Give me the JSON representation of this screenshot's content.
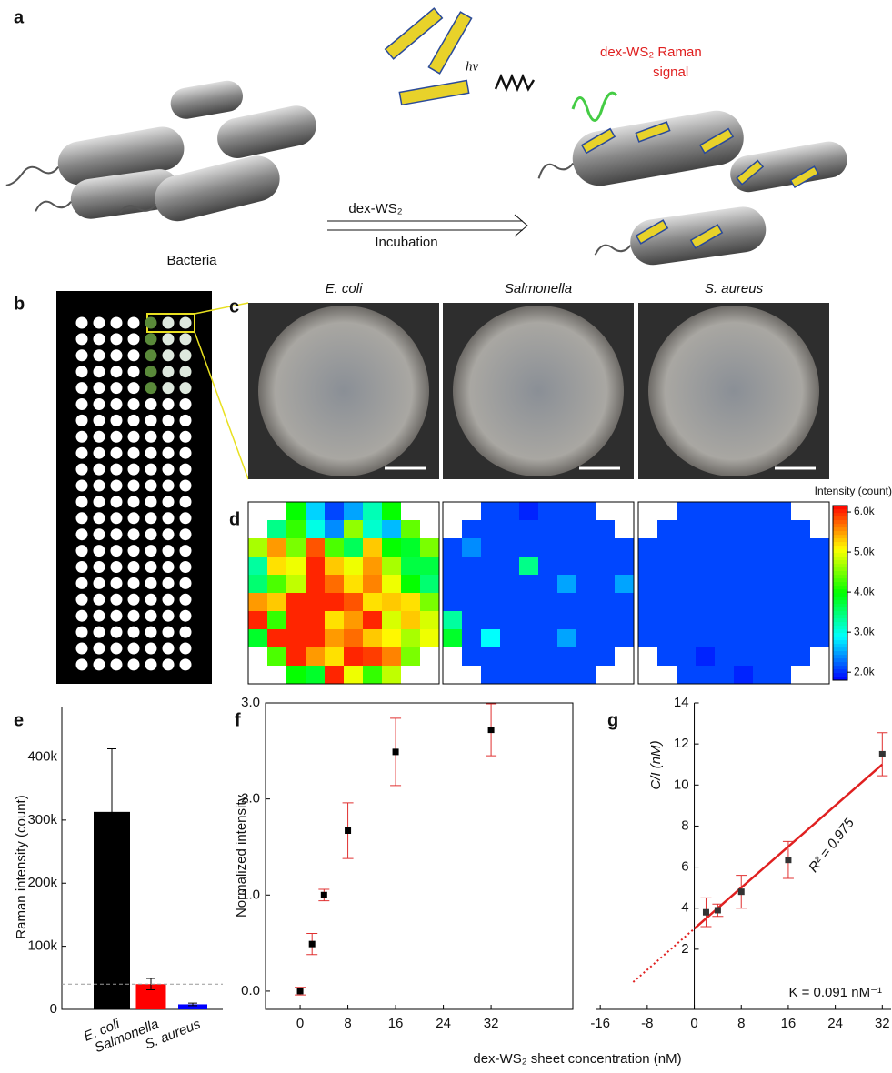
{
  "panel_labels": [
    "a",
    "b",
    "c",
    "d",
    "e",
    "f",
    "g"
  ],
  "panel_a": {
    "reagent": "dex-WS₂",
    "step": "Incubation",
    "bacteria": "Bacteria",
    "light": "hν",
    "signal": [
      "dex-WS₂ Raman",
      "signal"
    ]
  },
  "photos": {
    "titles": [
      "E. coli",
      "Salmonella",
      "S. aureus"
    ]
  },
  "shared_xlabel": "dex-WS₂ sheet concentration (nM)",
  "chart_data": [
    {
      "type": "heatmap",
      "values": [
        [
          null,
          null,
          4000,
          2700,
          2100,
          2500,
          3200,
          4000,
          null,
          null
        ],
        [
          null,
          3400,
          4200,
          3000,
          2400,
          4600,
          3100,
          2600,
          4400,
          null
        ],
        [
          4700,
          5500,
          4500,
          5800,
          4300,
          3600,
          5300,
          4000,
          3800,
          4500
        ],
        [
          3300,
          5200,
          5000,
          6000,
          5300,
          5000,
          5500,
          4700,
          3700,
          3700
        ],
        [
          3500,
          4300,
          4800,
          6000,
          5700,
          5200,
          5600,
          5000,
          4000,
          3500
        ],
        [
          5500,
          5300,
          6000,
          6000,
          6000,
          5800,
          5200,
          5300,
          5200,
          4500
        ],
        [
          6000,
          4200,
          6000,
          6000,
          5200,
          5500,
          6000,
          4900,
          5300,
          4900
        ],
        [
          3800,
          6000,
          6000,
          6000,
          5500,
          5700,
          5300,
          5100,
          4700,
          5000
        ],
        [
          null,
          4300,
          6000,
          5500,
          5200,
          6000,
          5900,
          5600,
          4500,
          null
        ],
        [
          null,
          null,
          4000,
          3800,
          6000,
          5000,
          4200,
          4800,
          null,
          null
        ]
      ]
    },
    {
      "type": "heatmap",
      "values": [
        [
          null,
          null,
          2100,
          2100,
          1950,
          2100,
          2100,
          2100,
          null,
          null
        ],
        [
          null,
          2100,
          2100,
          2100,
          2100,
          2100,
          2100,
          2100,
          2100,
          null
        ],
        [
          2100,
          2400,
          2100,
          2100,
          2100,
          2100,
          2100,
          2100,
          2100,
          2100
        ],
        [
          2100,
          2100,
          2100,
          2100,
          3400,
          2100,
          2100,
          2100,
          2100,
          2100
        ],
        [
          2100,
          2100,
          2100,
          2100,
          2100,
          2100,
          2500,
          2100,
          2100,
          2500
        ],
        [
          2100,
          2100,
          2100,
          2100,
          2100,
          2100,
          2100,
          2100,
          2100,
          2100
        ],
        [
          3300,
          2100,
          2100,
          2100,
          2100,
          2100,
          2100,
          2100,
          2100,
          2100
        ],
        [
          3800,
          2100,
          2900,
          2100,
          2100,
          2100,
          2500,
          2100,
          2100,
          2100
        ],
        [
          null,
          2100,
          2100,
          2100,
          2100,
          2100,
          2100,
          2100,
          2100,
          null
        ],
        [
          null,
          null,
          2100,
          2100,
          2100,
          2100,
          2100,
          2100,
          null,
          null
        ]
      ]
    },
    {
      "type": "heatmap",
      "values": [
        [
          null,
          null,
          2100,
          2100,
          2100,
          2100,
          2100,
          2100,
          null,
          null
        ],
        [
          null,
          2100,
          2100,
          2100,
          2100,
          2100,
          2100,
          2100,
          2100,
          null
        ],
        [
          2100,
          2100,
          2100,
          2100,
          2100,
          2100,
          2100,
          2100,
          2100,
          2100
        ],
        [
          2100,
          2100,
          2100,
          2100,
          2100,
          2100,
          2100,
          2100,
          2100,
          2100
        ],
        [
          2100,
          2100,
          2100,
          2100,
          2100,
          2100,
          2100,
          2100,
          2100,
          2100
        ],
        [
          2100,
          2100,
          2100,
          2100,
          2100,
          2100,
          2100,
          2100,
          2100,
          2100
        ],
        [
          2100,
          2100,
          2100,
          2100,
          2100,
          2100,
          2100,
          2100,
          2100,
          2100
        ],
        [
          2100,
          2100,
          2100,
          2100,
          2100,
          2100,
          2100,
          2100,
          2100,
          2100
        ],
        [
          null,
          2100,
          2100,
          1950,
          2100,
          2100,
          2100,
          2100,
          2100,
          null
        ],
        [
          null,
          null,
          2100,
          2100,
          2100,
          1950,
          2100,
          2100,
          null,
          null
        ]
      ],
      "colorbar": {
        "label": "Intensity (count)",
        "clim": [
          1800,
          6160
        ],
        "ticks": [
          {
            "value": 2000,
            "label": "2.0k"
          },
          {
            "value": 3000,
            "label": "3.0k"
          },
          {
            "value": 4000,
            "label": "4.0k"
          },
          {
            "value": 5000,
            "label": "5.0k"
          },
          {
            "value": 6000,
            "label": "6.0k"
          }
        ]
      }
    },
    {
      "type": "bar",
      "ylabel": "Raman intensity (count)",
      "categories": [
        "E. coli",
        "Salmonella",
        "S. aureus"
      ],
      "values": [
        313000,
        40000,
        8000
      ],
      "errors": [
        100000,
        9000,
        2000
      ],
      "colors": [
        "#000000",
        "#ff0000",
        "#0000ff"
      ],
      "reference_line": 40000,
      "ylim": [
        0,
        480000
      ],
      "yticks": [
        0,
        {
          "value": 100000,
          "label": "100k"
        },
        {
          "value": 200000,
          "label": "200k"
        },
        {
          "value": 300000,
          "label": "300k"
        },
        {
          "value": 400000,
          "label": "400k"
        }
      ]
    },
    {
      "type": "scatter",
      "ylabel": "Normalized intensity",
      "x": [
        0,
        2,
        4,
        8,
        16,
        32
      ],
      "values": [
        0.0,
        0.49,
        1.0,
        1.67,
        2.49,
        2.72
      ],
      "errors": [
        0.04,
        0.11,
        0.06,
        0.29,
        0.35,
        0.27
      ],
      "xlim": [
        -5.8,
        45.7
      ],
      "ylim": [
        -0.19,
        3.0
      ],
      "xticks": [
        0,
        8,
        16,
        24,
        32
      ],
      "yticks": [
        {
          "value": 0,
          "label": "0.0"
        },
        {
          "value": 1,
          "label": "1.0"
        },
        {
          "value": 2,
          "label": "2.0"
        },
        {
          "value": 3,
          "label": "3.0"
        }
      ],
      "marker_color": "#000000",
      "error_color": "#e03030"
    },
    {
      "type": "scatter",
      "ylabel": "C/I (nM)",
      "x": [
        2,
        4,
        8,
        16,
        32
      ],
      "values": [
        3.8,
        3.9,
        4.8,
        6.35,
        11.5
      ],
      "errors": [
        0.7,
        0.3,
        0.8,
        0.9,
        1.05
      ],
      "xlim": [
        -16.8,
        33.5
      ],
      "ylim": [
        -0.93,
        14
      ],
      "xticks": [
        -16,
        -8,
        0,
        8,
        16,
        24,
        32
      ],
      "yticks": [
        2,
        4,
        6,
        8,
        10,
        12,
        14
      ],
      "fit_line": {
        "x": [
          0,
          32
        ],
        "y": [
          3.0,
          11.0
        ]
      },
      "extrapolation": {
        "x": [
          -10.4,
          0
        ],
        "y": [
          0.4,
          3.0
        ]
      },
      "annotations": [
        "R² = 0.975",
        "K = 0.091 nM⁻¹"
      ],
      "marker_color": "#333333",
      "error_color": "#e03030",
      "fit_color": "#e02020"
    }
  ]
}
